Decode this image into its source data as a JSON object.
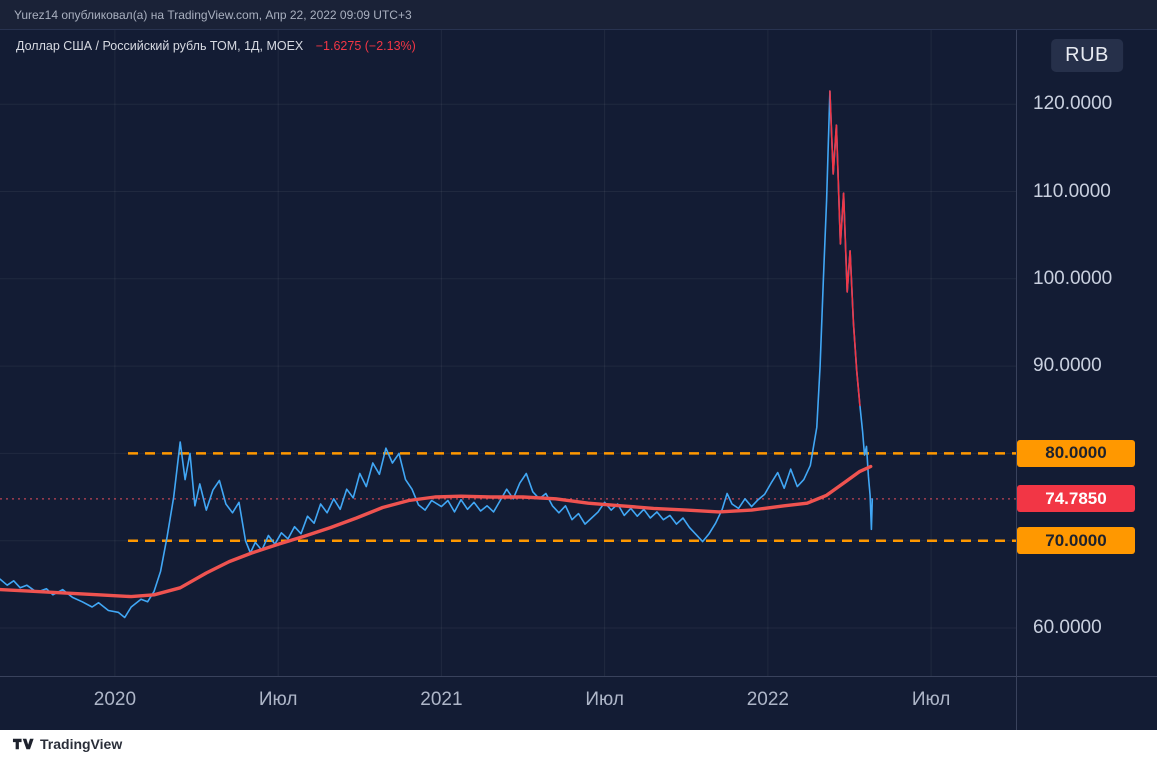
{
  "header": {
    "attribution": "Yurez14 опубликовал(а) на TradingView.com, Апр 22, 2022 09:09 UTC+3"
  },
  "footer": {
    "logo_text": "TradingView"
  },
  "chart_data": {
    "type": "line",
    "title": "Доллар США / Российский рубль ТОМ, 1Д, MOEX",
    "change_label": "−1.6275 (−2.13%)",
    "x_axis": {
      "range": [
        2019.648,
        2022.76
      ],
      "ticks": [
        {
          "label": "2020",
          "t": 2020.0
        },
        {
          "label": "Июл",
          "t": 2020.5
        },
        {
          "label": "2021",
          "t": 2021.0
        },
        {
          "label": "Июл",
          "t": 2021.5
        },
        {
          "label": "2022",
          "t": 2022.0
        },
        {
          "label": "Июл",
          "t": 2022.5
        }
      ]
    },
    "y_axis": {
      "currency": "RUB",
      "range": [
        54.5,
        128.5
      ],
      "grid_values": [
        60,
        70,
        80,
        90,
        100,
        110,
        120
      ],
      "ticks": [
        {
          "label": "120.0000",
          "value": 120
        },
        {
          "label": "110.0000",
          "value": 110
        },
        {
          "label": "100.0000",
          "value": 100
        },
        {
          "label": "90.0000",
          "value": 90
        },
        {
          "label": "60.0000",
          "value": 60
        }
      ]
    },
    "levels": [
      {
        "value": 80,
        "label": "80.0000",
        "line_color": "#ff9800",
        "badge_color": "#ff9800",
        "badge_text_color": "#1e222d",
        "style": "dashed",
        "start_t": 2020.04
      },
      {
        "value": 74.785,
        "label": "74.7850",
        "line_color": "#f7525f",
        "badge_color": "#f23645",
        "badge_text_color": "#ffffff",
        "style": "dotted",
        "start_t": 2019.648
      },
      {
        "value": 70,
        "label": "70.0000",
        "line_color": "#ff9800",
        "badge_color": "#ff9800",
        "badge_text_color": "#1e222d",
        "style": "dashed",
        "start_t": 2020.04
      }
    ],
    "series": [
      {
        "name": "USD/RUB TOM daily close",
        "color": "#41a7f5",
        "width": 1.6,
        "points": [
          [
            2019.648,
            65.6
          ],
          [
            2019.67,
            64.9
          ],
          [
            2019.69,
            65.4
          ],
          [
            2019.71,
            64.6
          ],
          [
            2019.73,
            64.9
          ],
          [
            2019.76,
            64.1
          ],
          [
            2019.79,
            64.5
          ],
          [
            2019.81,
            63.8
          ],
          [
            2019.84,
            64.4
          ],
          [
            2019.87,
            63.5
          ],
          [
            2019.9,
            63.0
          ],
          [
            2019.93,
            62.4
          ],
          [
            2019.95,
            62.9
          ],
          [
            2019.98,
            62.0
          ],
          [
            2020.01,
            61.8
          ],
          [
            2020.03,
            61.2
          ],
          [
            2020.05,
            62.4
          ],
          [
            2020.08,
            63.3
          ],
          [
            2020.1,
            63.0
          ],
          [
            2020.12,
            64.2
          ],
          [
            2020.14,
            66.5
          ],
          [
            2020.16,
            70.5
          ],
          [
            2020.18,
            75.0
          ],
          [
            2020.2,
            81.3
          ],
          [
            2020.215,
            77.0
          ],
          [
            2020.23,
            80.0
          ],
          [
            2020.245,
            74.0
          ],
          [
            2020.26,
            76.5
          ],
          [
            2020.28,
            73.5
          ],
          [
            2020.3,
            75.8
          ],
          [
            2020.32,
            76.9
          ],
          [
            2020.34,
            74.2
          ],
          [
            2020.36,
            73.2
          ],
          [
            2020.38,
            74.4
          ],
          [
            2020.4,
            70.0
          ],
          [
            2020.415,
            68.6
          ],
          [
            2020.43,
            69.8
          ],
          [
            2020.45,
            68.9
          ],
          [
            2020.47,
            70.6
          ],
          [
            2020.49,
            69.6
          ],
          [
            2020.51,
            70.9
          ],
          [
            2020.53,
            70.2
          ],
          [
            2020.55,
            71.6
          ],
          [
            2020.57,
            70.8
          ],
          [
            2020.59,
            72.8
          ],
          [
            2020.61,
            72.0
          ],
          [
            2020.63,
            74.2
          ],
          [
            2020.65,
            73.2
          ],
          [
            2020.67,
            74.8
          ],
          [
            2020.69,
            73.6
          ],
          [
            2020.71,
            75.9
          ],
          [
            2020.73,
            74.9
          ],
          [
            2020.75,
            77.7
          ],
          [
            2020.77,
            76.2
          ],
          [
            2020.79,
            78.9
          ],
          [
            2020.81,
            77.6
          ],
          [
            2020.83,
            80.6
          ],
          [
            2020.85,
            78.9
          ],
          [
            2020.87,
            80.0
          ],
          [
            2020.89,
            77.0
          ],
          [
            2020.91,
            75.9
          ],
          [
            2020.93,
            74.1
          ],
          [
            2020.95,
            73.5
          ],
          [
            2020.97,
            74.6
          ],
          [
            2021.0,
            73.9
          ],
          [
            2021.02,
            74.6
          ],
          [
            2021.04,
            73.3
          ],
          [
            2021.06,
            74.7
          ],
          [
            2021.08,
            73.6
          ],
          [
            2021.1,
            74.4
          ],
          [
            2021.12,
            73.4
          ],
          [
            2021.14,
            74.0
          ],
          [
            2021.16,
            73.3
          ],
          [
            2021.18,
            74.6
          ],
          [
            2021.2,
            75.9
          ],
          [
            2021.22,
            74.8
          ],
          [
            2021.24,
            76.6
          ],
          [
            2021.26,
            77.7
          ],
          [
            2021.28,
            75.6
          ],
          [
            2021.3,
            74.8
          ],
          [
            2021.32,
            75.4
          ],
          [
            2021.34,
            74.0
          ],
          [
            2021.36,
            73.2
          ],
          [
            2021.38,
            74.0
          ],
          [
            2021.4,
            72.4
          ],
          [
            2021.42,
            73.1
          ],
          [
            2021.44,
            71.9
          ],
          [
            2021.46,
            72.6
          ],
          [
            2021.48,
            73.3
          ],
          [
            2021.5,
            74.4
          ],
          [
            2021.52,
            73.5
          ],
          [
            2021.54,
            74.2
          ],
          [
            2021.56,
            72.9
          ],
          [
            2021.58,
            73.7
          ],
          [
            2021.6,
            72.8
          ],
          [
            2021.62,
            73.6
          ],
          [
            2021.64,
            72.6
          ],
          [
            2021.66,
            73.3
          ],
          [
            2021.68,
            72.4
          ],
          [
            2021.7,
            72.9
          ],
          [
            2021.72,
            71.9
          ],
          [
            2021.74,
            72.6
          ],
          [
            2021.76,
            71.5
          ],
          [
            2021.78,
            70.7
          ],
          [
            2021.8,
            69.9
          ],
          [
            2021.82,
            70.8
          ],
          [
            2021.84,
            72.0
          ],
          [
            2021.86,
            73.6
          ],
          [
            2021.875,
            75.4
          ],
          [
            2021.89,
            74.2
          ],
          [
            2021.91,
            73.7
          ],
          [
            2021.93,
            74.8
          ],
          [
            2021.95,
            73.9
          ],
          [
            2021.97,
            74.7
          ],
          [
            2021.99,
            75.3
          ],
          [
            2022.01,
            76.6
          ],
          [
            2022.03,
            77.8
          ],
          [
            2022.05,
            76.0
          ],
          [
            2022.07,
            78.2
          ],
          [
            2022.09,
            76.2
          ],
          [
            2022.11,
            77.0
          ],
          [
            2022.13,
            78.6
          ],
          [
            2022.15,
            83.0
          ],
          [
            2022.16,
            90.0
          ],
          [
            2022.17,
            100.0
          ],
          [
            2022.18,
            109.0
          ],
          [
            2022.19,
            121.5
          ],
          [
            2022.2,
            112.0
          ],
          [
            2022.21,
            117.6
          ],
          [
            2022.222,
            104.0
          ],
          [
            2022.232,
            109.8
          ],
          [
            2022.243,
            98.5
          ],
          [
            2022.252,
            103.2
          ],
          [
            2022.262,
            95.0
          ],
          [
            2022.272,
            89.5
          ],
          [
            2022.282,
            85.5
          ],
          [
            2022.29,
            82.5
          ],
          [
            2022.296,
            79.8
          ],
          [
            2022.302,
            80.8
          ],
          [
            2022.308,
            77.4
          ],
          [
            2022.313,
            75.2
          ],
          [
            2022.317,
            71.3
          ],
          [
            2022.32,
            74.785
          ]
        ]
      },
      {
        "name": "sell-off segment",
        "color": "#f23645",
        "width": 1.6,
        "points": [
          [
            2022.19,
            121.5
          ],
          [
            2022.2,
            112.0
          ],
          [
            2022.21,
            117.6
          ],
          [
            2022.222,
            104.0
          ],
          [
            2022.232,
            109.8
          ],
          [
            2022.243,
            98.5
          ],
          [
            2022.252,
            103.2
          ],
          [
            2022.262,
            95.0
          ],
          [
            2022.272,
            89.5
          ],
          [
            2022.282,
            85.5
          ]
        ]
      },
      {
        "name": "moving average",
        "color": "#ef5350",
        "width": 3.4,
        "points": [
          [
            2019.648,
            64.4
          ],
          [
            2019.75,
            64.2
          ],
          [
            2019.85,
            64.0
          ],
          [
            2019.95,
            63.8
          ],
          [
            2020.05,
            63.6
          ],
          [
            2020.12,
            63.8
          ],
          [
            2020.2,
            64.6
          ],
          [
            2020.28,
            66.3
          ],
          [
            2020.35,
            67.6
          ],
          [
            2020.42,
            68.6
          ],
          [
            2020.5,
            69.6
          ],
          [
            2020.58,
            70.5
          ],
          [
            2020.66,
            71.5
          ],
          [
            2020.74,
            72.6
          ],
          [
            2020.82,
            73.8
          ],
          [
            2020.9,
            74.6
          ],
          [
            2020.98,
            75.0
          ],
          [
            2021.06,
            75.1
          ],
          [
            2021.15,
            75.0
          ],
          [
            2021.25,
            75.0
          ],
          [
            2021.35,
            74.8
          ],
          [
            2021.45,
            74.3
          ],
          [
            2021.55,
            74.0
          ],
          [
            2021.65,
            73.7
          ],
          [
            2021.75,
            73.5
          ],
          [
            2021.85,
            73.3
          ],
          [
            2021.95,
            73.5
          ],
          [
            2022.05,
            74.0
          ],
          [
            2022.12,
            74.3
          ],
          [
            2022.18,
            75.2
          ],
          [
            2022.24,
            76.8
          ],
          [
            2022.28,
            77.9
          ],
          [
            2022.315,
            78.5
          ]
        ]
      }
    ]
  }
}
